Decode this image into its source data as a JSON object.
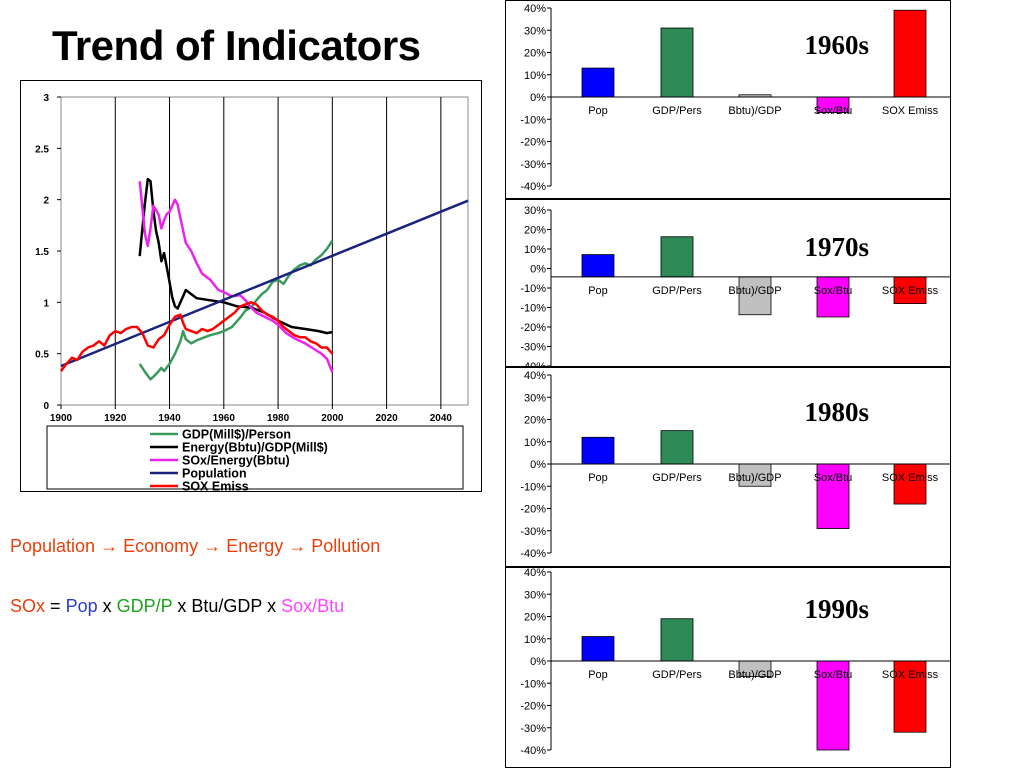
{
  "title": "Trend of Indicators",
  "flow_text": {
    "population": "Population",
    "economy": "Economy",
    "energy": "Energy",
    "pollution": "Pollution",
    "arrow": "→"
  },
  "equation": {
    "sox": "SOx",
    "eq": "=",
    "pop": "Pop",
    "x": "x",
    "gdpp": "GDP/P",
    "btugdp": "Btu/GDP",
    "soxbtu": "Sox/Btu"
  },
  "colors": {
    "flow_text": "#e8400c",
    "sox": "#e8400c",
    "pop": "#2a3cc8",
    "gdpp": "#1aa51a",
    "soxbtu": "#ff44ff"
  },
  "chart_data": [
    {
      "type": "line",
      "x_ticks": [
        1900,
        1920,
        1940,
        1960,
        1980,
        2000,
        2020,
        2040
      ],
      "xlim": [
        1900,
        2050
      ],
      "y_ticks": [
        "0",
        "0.5",
        "1",
        "1.5",
        "2",
        "2.5",
        "3"
      ],
      "ylim": [
        0,
        3
      ],
      "grid": "vertical",
      "legend_position": "bottom",
      "series": [
        {
          "name": "GDP(Mill$)/Person",
          "color": "#3a9a5c",
          "points": [
            [
              1929,
              0.4
            ],
            [
              1931,
              0.32
            ],
            [
              1933,
              0.25
            ],
            [
              1935,
              0.3
            ],
            [
              1937,
              0.36
            ],
            [
              1938,
              0.33
            ],
            [
              1940,
              0.4
            ],
            [
              1942,
              0.5
            ],
            [
              1944,
              0.62
            ],
            [
              1945,
              0.72
            ],
            [
              1946,
              0.64
            ],
            [
              1948,
              0.6
            ],
            [
              1950,
              0.63
            ],
            [
              1953,
              0.66
            ],
            [
              1955,
              0.68
            ],
            [
              1958,
              0.7
            ],
            [
              1960,
              0.72
            ],
            [
              1963,
              0.76
            ],
            [
              1966,
              0.85
            ],
            [
              1968,
              0.92
            ],
            [
              1970,
              0.95
            ],
            [
              1972,
              1.02
            ],
            [
              1974,
              1.08
            ],
            [
              1976,
              1.12
            ],
            [
              1978,
              1.2
            ],
            [
              1980,
              1.22
            ],
            [
              1982,
              1.18
            ],
            [
              1984,
              1.26
            ],
            [
              1986,
              1.32
            ],
            [
              1988,
              1.36
            ],
            [
              1990,
              1.38
            ],
            [
              1992,
              1.36
            ],
            [
              1994,
              1.42
            ],
            [
              1996,
              1.46
            ],
            [
              1998,
              1.52
            ],
            [
              2000,
              1.6
            ]
          ]
        },
        {
          "name": "Energy(Bbtu)/GDP(Mill$)",
          "color": "#000000",
          "points": [
            [
              1929,
              1.45
            ],
            [
              1930,
              1.72
            ],
            [
              1931,
              1.98
            ],
            [
              1932,
              2.2
            ],
            [
              1933,
              2.18
            ],
            [
              1934,
              1.9
            ],
            [
              1935,
              1.7
            ],
            [
              1936,
              1.58
            ],
            [
              1937,
              1.4
            ],
            [
              1938,
              1.48
            ],
            [
              1939,
              1.34
            ],
            [
              1940,
              1.2
            ],
            [
              1941,
              1.05
            ],
            [
              1942,
              0.96
            ],
            [
              1943,
              0.94
            ],
            [
              1944,
              1.0
            ],
            [
              1945,
              1.06
            ],
            [
              1946,
              1.12
            ],
            [
              1948,
              1.08
            ],
            [
              1950,
              1.04
            ],
            [
              1955,
              1.02
            ],
            [
              1960,
              1.0
            ],
            [
              1965,
              0.96
            ],
            [
              1970,
              0.95
            ],
            [
              1975,
              0.9
            ],
            [
              1980,
              0.82
            ],
            [
              1985,
              0.76
            ],
            [
              1990,
              0.74
            ],
            [
              1995,
              0.72
            ],
            [
              1998,
              0.7
            ],
            [
              2000,
              0.71
            ]
          ]
        },
        {
          "name": "SOx/Energy(Bbtu)",
          "color": "#ee22ee",
          "points": [
            [
              1929,
              2.18
            ],
            [
              1930,
              1.92
            ],
            [
              1931,
              1.66
            ],
            [
              1932,
              1.55
            ],
            [
              1933,
              1.72
            ],
            [
              1934,
              1.94
            ],
            [
              1935,
              1.9
            ],
            [
              1936,
              1.85
            ],
            [
              1937,
              1.72
            ],
            [
              1938,
              1.8
            ],
            [
              1939,
              1.86
            ],
            [
              1940,
              1.88
            ],
            [
              1941,
              1.94
            ],
            [
              1942,
              2.0
            ],
            [
              1943,
              1.95
            ],
            [
              1944,
              1.82
            ],
            [
              1945,
              1.7
            ],
            [
              1946,
              1.58
            ],
            [
              1948,
              1.5
            ],
            [
              1950,
              1.38
            ],
            [
              1952,
              1.28
            ],
            [
              1955,
              1.22
            ],
            [
              1958,
              1.12
            ],
            [
              1960,
              1.1
            ],
            [
              1963,
              1.06
            ],
            [
              1966,
              1.07
            ],
            [
              1968,
              1.02
            ],
            [
              1970,
              0.95
            ],
            [
              1972,
              0.9
            ],
            [
              1975,
              0.86
            ],
            [
              1978,
              0.82
            ],
            [
              1980,
              0.78
            ],
            [
              1983,
              0.7
            ],
            [
              1986,
              0.65
            ],
            [
              1990,
              0.6
            ],
            [
              1993,
              0.55
            ],
            [
              1996,
              0.5
            ],
            [
              1998,
              0.45
            ],
            [
              2000,
              0.32
            ]
          ]
        },
        {
          "name": "Population",
          "color": "#1a237e",
          "points": [
            [
              1900,
              0.38
            ],
            [
              2050,
              1.99
            ]
          ]
        },
        {
          "name": "SOX Emiss",
          "color": "#ff0000",
          "points": [
            [
              1900,
              0.33
            ],
            [
              1902,
              0.4
            ],
            [
              1904,
              0.46
            ],
            [
              1906,
              0.44
            ],
            [
              1908,
              0.52
            ],
            [
              1910,
              0.56
            ],
            [
              1912,
              0.58
            ],
            [
              1914,
              0.62
            ],
            [
              1916,
              0.58
            ],
            [
              1918,
              0.68
            ],
            [
              1920,
              0.72
            ],
            [
              1922,
              0.7
            ],
            [
              1924,
              0.74
            ],
            [
              1926,
              0.76
            ],
            [
              1928,
              0.76
            ],
            [
              1930,
              0.7
            ],
            [
              1932,
              0.58
            ],
            [
              1934,
              0.56
            ],
            [
              1936,
              0.64
            ],
            [
              1938,
              0.68
            ],
            [
              1940,
              0.78
            ],
            [
              1942,
              0.86
            ],
            [
              1944,
              0.88
            ],
            [
              1945,
              0.8
            ],
            [
              1946,
              0.74
            ],
            [
              1948,
              0.72
            ],
            [
              1950,
              0.7
            ],
            [
              1952,
              0.74
            ],
            [
              1954,
              0.72
            ],
            [
              1956,
              0.74
            ],
            [
              1958,
              0.78
            ],
            [
              1960,
              0.82
            ],
            [
              1962,
              0.86
            ],
            [
              1964,
              0.9
            ],
            [
              1966,
              0.96
            ],
            [
              1968,
              0.98
            ],
            [
              1970,
              1.0
            ],
            [
              1972,
              0.98
            ],
            [
              1974,
              0.92
            ],
            [
              1976,
              0.88
            ],
            [
              1978,
              0.86
            ],
            [
              1980,
              0.82
            ],
            [
              1982,
              0.76
            ],
            [
              1984,
              0.72
            ],
            [
              1986,
              0.68
            ],
            [
              1988,
              0.66
            ],
            [
              1990,
              0.66
            ],
            [
              1992,
              0.62
            ],
            [
              1994,
              0.6
            ],
            [
              1996,
              0.56
            ],
            [
              1998,
              0.56
            ],
            [
              2000,
              0.5
            ]
          ]
        }
      ]
    },
    {
      "type": "bar",
      "panel_label": "1960s",
      "categories": [
        "Pop",
        "GDP/Pers",
        "Bbtu)/GDP",
        "Sox/Btu",
        "SOX Emiss"
      ],
      "values": [
        13,
        31,
        1,
        -7,
        39
      ],
      "colors": [
        "#0000ff",
        "#2e8b57",
        "#c0c0c0",
        "#ff00ff",
        "#ff0000"
      ],
      "y_ticks": [
        "40%",
        "30%",
        "20%",
        "10%",
        "0%",
        "-10%",
        "-20%",
        "-30%",
        "-40%"
      ],
      "ylim": [
        -40,
        40
      ]
    },
    {
      "type": "bar",
      "panel_label": "1970s",
      "categories": [
        "Pop",
        "GDP/Pers",
        "Bbtu)/GDP",
        "Sox/Btu",
        "SOX Emiss"
      ],
      "values": [
        10,
        18,
        -17,
        -18,
        -12
      ],
      "colors": [
        "#0000ff",
        "#2e8b57",
        "#c0c0c0",
        "#ff00ff",
        "#ff0000"
      ],
      "y_ticks": [
        "30%",
        "20%",
        "10%",
        "0%",
        "-10%",
        "-10%",
        "-20%",
        "-30%",
        "-40%"
      ],
      "ylim": [
        -40,
        30
      ]
    },
    {
      "type": "bar",
      "panel_label": "1980s",
      "categories": [
        "Pop",
        "GDP/Pers",
        "Bbtu)/GDP",
        "Sox/Btu",
        "SOX Emiss"
      ],
      "values": [
        12,
        15,
        -10,
        -29,
        -18
      ],
      "colors": [
        "#0000ff",
        "#2e8b57",
        "#c0c0c0",
        "#ff00ff",
        "#ff0000"
      ],
      "y_ticks": [
        "40%",
        "30%",
        "20%",
        "10%",
        "0%",
        "-10%",
        "-20%",
        "-30%",
        "-40%"
      ],
      "ylim": [
        -40,
        40
      ]
    },
    {
      "type": "bar",
      "panel_label": "1990s",
      "categories": [
        "Pop",
        "GDP/Pers",
        "Bbtu)/GDP",
        "Sox/Btu",
        "SOX Emiss"
      ],
      "values": [
        11,
        19,
        -7,
        -40,
        -32
      ],
      "colors": [
        "#0000ff",
        "#2e8b57",
        "#c0c0c0",
        "#ff00ff",
        "#ff0000"
      ],
      "y_ticks": [
        "40%",
        "30%",
        "20%",
        "10%",
        "0%",
        "-10%",
        "-20%",
        "-30%",
        "-40%"
      ],
      "ylim": [
        -40,
        40
      ]
    }
  ]
}
